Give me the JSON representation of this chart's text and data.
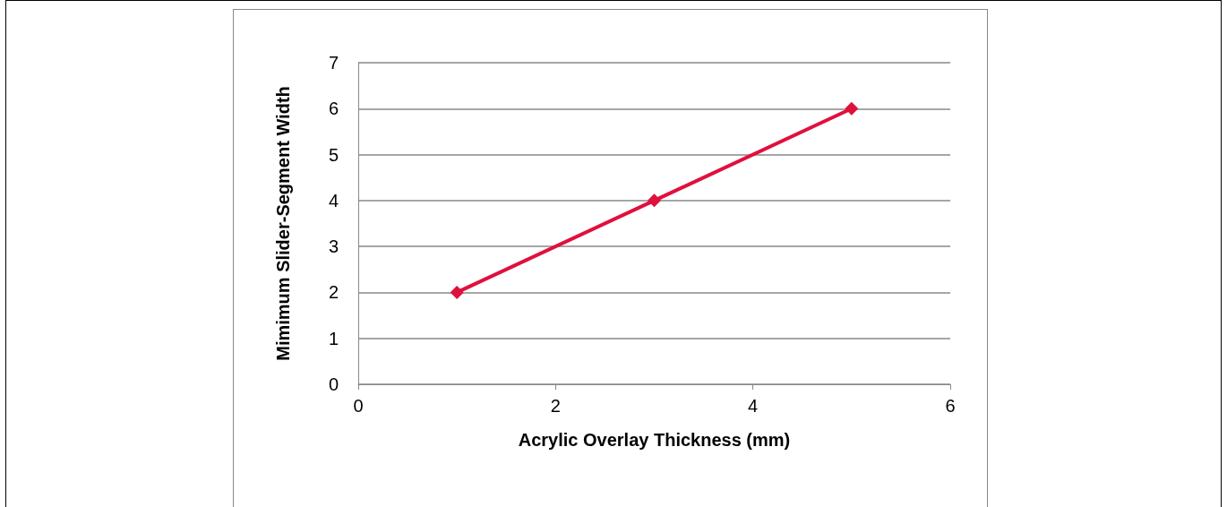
{
  "chart_data": {
    "type": "line",
    "xlabel": "Acrylic Overlay Thickness (mm)",
    "ylabel": "Mimimum Slider-Segment Width",
    "x": [
      1,
      3,
      5
    ],
    "series": [
      {
        "color": "#e0103c",
        "values": [
          2,
          4,
          6
        ]
      }
    ],
    "xlim": [
      0,
      6
    ],
    "xticks": [
      0,
      2,
      4,
      6
    ],
    "ylim": [
      0,
      7
    ],
    "yticks": [
      0,
      1,
      2,
      3,
      4,
      5,
      6,
      7
    ],
    "grid": "y",
    "marker": "diamond",
    "line_style": "solid"
  }
}
